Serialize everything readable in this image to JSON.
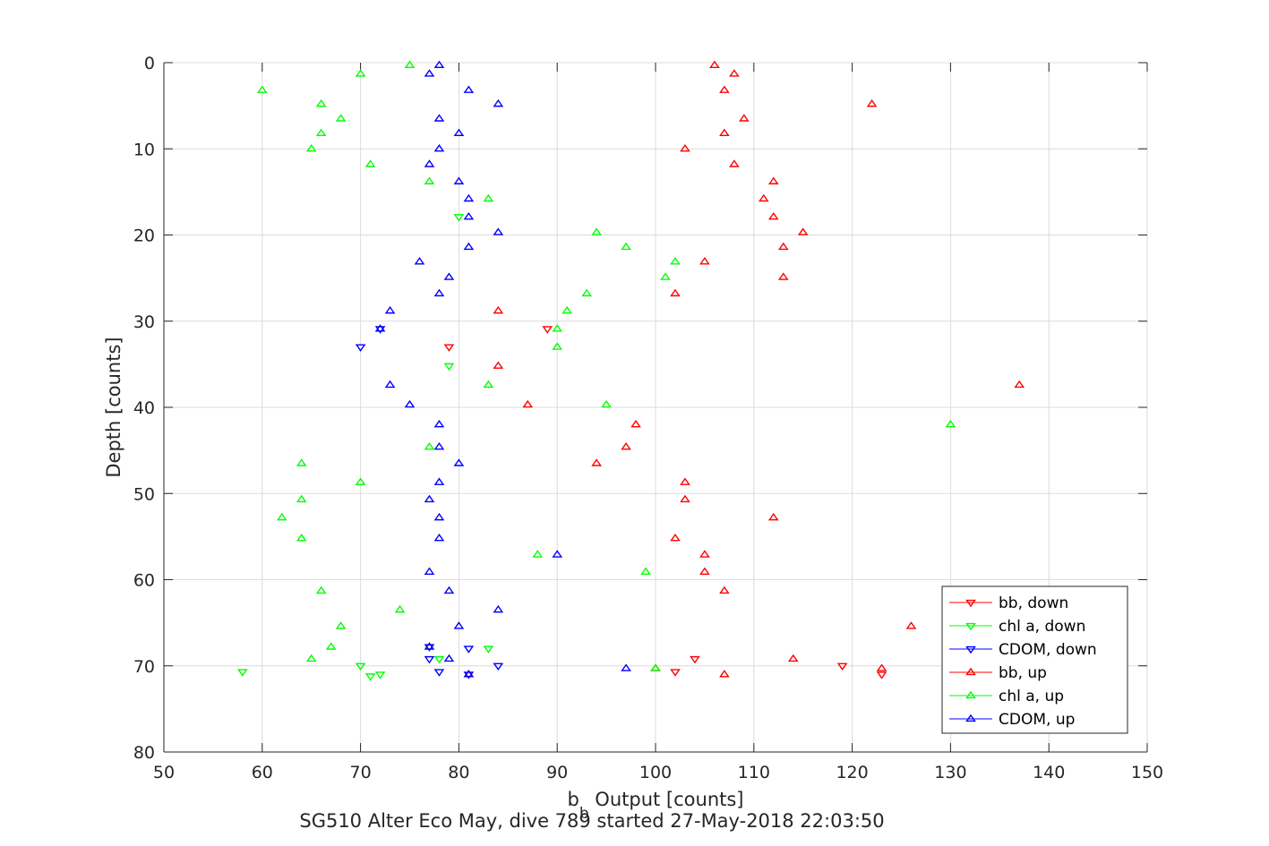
{
  "chart_data": {
    "type": "scatter",
    "title": "",
    "caption": "SG510 Alter Eco May, dive 789 started 27-May-2018 22:03:50",
    "xlabel": {
      "main": "b",
      "sub": "b",
      "rest": " Output [counts]"
    },
    "ylabel": "Depth [counts]",
    "xlim": [
      50,
      150
    ],
    "ylim": [
      80,
      0
    ],
    "y_reversed": true,
    "grid": true,
    "legend_position": "bottom-right",
    "x_ticks": [
      "50",
      "60",
      "70",
      "80",
      "90",
      "100",
      "110",
      "120",
      "130",
      "140",
      "150"
    ],
    "y_ticks": [
      "0",
      "10",
      "20",
      "30",
      "40",
      "50",
      "60",
      "70",
      "80"
    ],
    "series": [
      {
        "name": "bb, down",
        "color": "#ff0000",
        "marker": "triangle-down",
        "x": [
          89,
          79,
          102,
          104,
          119,
          123
        ],
        "y": [
          30.9,
          33.0,
          70.7,
          69.2,
          70.0,
          71.0
        ]
      },
      {
        "name": "chl a, down",
        "color": "#00ff00",
        "marker": "triangle-down",
        "x": [
          70,
          58,
          71,
          72,
          78,
          83,
          80,
          79
        ],
        "y": [
          70.0,
          70.7,
          71.2,
          71.0,
          69.2,
          68.0,
          17.9,
          35.2
        ]
      },
      {
        "name": "CDOM, down",
        "color": "#0000ff",
        "marker": "triangle-down",
        "x": [
          77,
          84,
          81,
          78,
          81,
          77,
          72,
          70
        ],
        "y": [
          69.2,
          70.0,
          71.0,
          70.7,
          68.0,
          67.8,
          30.9,
          33.0
        ]
      },
      {
        "name": "bb, up",
        "color": "#ff0000",
        "marker": "triangle-up",
        "x": [
          106,
          108,
          107,
          122,
          109,
          107,
          103,
          108,
          112,
          111,
          112,
          115,
          105,
          113,
          113,
          102,
          84,
          84,
          137,
          87,
          98,
          97,
          94,
          103,
          103,
          112,
          102,
          105,
          105,
          107,
          126,
          114,
          123,
          100,
          107,
          81
        ],
        "y": [
          0.3,
          1.3,
          3.2,
          4.8,
          6.5,
          8.2,
          10.0,
          11.8,
          13.8,
          15.8,
          17.9,
          19.7,
          23.1,
          21.4,
          24.9,
          26.8,
          28.8,
          35.2,
          37.4,
          39.7,
          42.0,
          44.6,
          46.5,
          48.7,
          50.7,
          52.8,
          55.2,
          57.1,
          59.1,
          61.3,
          65.4,
          69.2,
          70.3,
          70.3,
          71.0,
          71.0
        ]
      },
      {
        "name": "chl a, up",
        "color": "#00ff00",
        "marker": "triangle-up",
        "x": [
          75,
          70,
          60,
          66,
          68,
          66,
          65,
          71,
          77,
          83,
          94,
          97,
          102,
          101,
          93,
          91,
          90,
          90,
          83,
          95,
          130,
          77,
          64,
          70,
          64,
          62,
          64,
          88,
          99,
          66,
          74,
          68,
          67,
          65,
          100
        ],
        "y": [
          0.3,
          1.3,
          3.2,
          4.8,
          6.5,
          8.2,
          10.0,
          11.8,
          13.8,
          15.8,
          19.7,
          21.4,
          23.1,
          24.9,
          26.8,
          28.8,
          30.9,
          33.0,
          37.4,
          39.7,
          42.0,
          44.6,
          46.5,
          48.7,
          50.7,
          52.8,
          55.2,
          57.1,
          59.1,
          61.3,
          63.5,
          65.4,
          67.8,
          69.2,
          70.3
        ]
      },
      {
        "name": "CDOM, up",
        "color": "#0000ff",
        "marker": "triangle-up",
        "x": [
          78,
          77,
          81,
          84,
          78,
          80,
          78,
          77,
          80,
          81,
          81,
          84,
          81,
          76,
          79,
          78,
          73,
          72,
          73,
          75,
          78,
          78,
          80,
          78,
          77,
          78,
          78,
          90,
          77,
          79,
          84,
          80,
          77,
          79,
          97,
          81
        ],
        "y": [
          0.3,
          1.3,
          3.2,
          4.8,
          6.5,
          8.2,
          10.0,
          11.8,
          13.8,
          15.8,
          17.9,
          19.7,
          21.4,
          23.1,
          24.9,
          26.8,
          28.8,
          30.9,
          37.4,
          39.7,
          42.0,
          44.6,
          46.5,
          48.7,
          50.7,
          52.8,
          55.2,
          57.1,
          59.1,
          61.3,
          63.5,
          65.4,
          67.8,
          69.2,
          70.3,
          71.0
        ]
      }
    ]
  }
}
